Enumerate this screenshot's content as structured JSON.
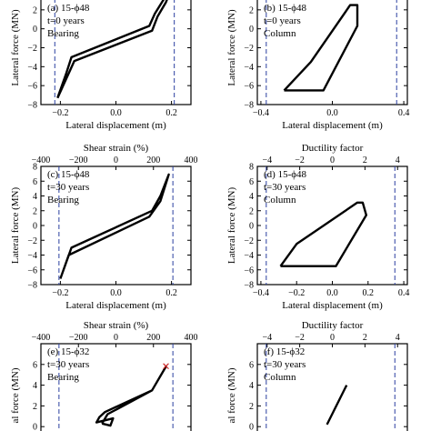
{
  "chart_data": [
    {
      "type": "line",
      "annotation": [
        "(a) 15-ϕ48",
        "t=0 years",
        "Bearing"
      ],
      "xlabel": "Lateral displacement (m)",
      "ylabel": "Lateral force (MN)",
      "xlim": [
        -0.27,
        0.27
      ],
      "ylim": [
        -8,
        4
      ],
      "xticks": [
        {
          "v": -0.2,
          "label": "−0.2"
        },
        {
          "v": 0,
          "label": "0.0"
        },
        {
          "v": 0.2,
          "label": "0.2"
        }
      ],
      "yticks": [
        {
          "v": -8,
          "label": "−8"
        },
        {
          "v": -6,
          "label": "−6"
        },
        {
          "v": -4,
          "label": "−4"
        },
        {
          "v": -2,
          "label": "−2"
        },
        {
          "v": 0,
          "label": "0"
        },
        {
          "v": 2,
          "label": "2"
        }
      ],
      "limit_lines": [
        -0.22,
        0.21
      ],
      "series": [
        {
          "x": [
            -0.21,
            -0.19,
            -0.17,
            -0.15,
            0.13,
            0.15,
            0.18,
            0.2,
            0.17,
            0.14,
            0.12,
            -0.16,
            -0.18,
            -0.21
          ],
          "y": [
            -7.3,
            -6.0,
            -4.7,
            -3.4,
            -0.2,
            1.3,
            2.8,
            4.3,
            3.0,
            1.6,
            0.3,
            -3.0,
            -4.8,
            -7.3
          ]
        }
      ]
    },
    {
      "type": "line",
      "annotation": [
        "(b) 15-ϕ48",
        "t=0 years",
        "Column"
      ],
      "xlabel": "Lateral displacement (m)",
      "ylabel": "Lateral force (MN)",
      "xlim": [
        -0.42,
        0.42
      ],
      "ylim": [
        -8,
        4
      ],
      "xticks": [
        {
          "v": -0.4,
          "label": "−0.4"
        },
        {
          "v": 0,
          "label": "0.0"
        },
        {
          "v": 0.4,
          "label": "0.4"
        }
      ],
      "yticks": [
        {
          "v": -8,
          "label": "−8"
        },
        {
          "v": -6,
          "label": "−6"
        },
        {
          "v": -4,
          "label": "−4"
        },
        {
          "v": -2,
          "label": "−2"
        },
        {
          "v": 0,
          "label": "0"
        },
        {
          "v": 2,
          "label": "2"
        }
      ],
      "limit_lines": [
        -0.37,
        0.36
      ],
      "series": [
        {
          "x": [
            -0.27,
            -0.05,
            0.14,
            0.14,
            0.1,
            -0.12,
            -0.27
          ],
          "y": [
            -6.5,
            -6.5,
            0.3,
            2.5,
            2.5,
            -3.5,
            -6.5
          ]
        }
      ]
    },
    {
      "type": "line",
      "annotation": [
        "(c) 15-ϕ48",
        "t=30 years",
        "Bearing"
      ],
      "xlabel": "Lateral displacement (m)",
      "ylabel": "Lateral force (MN)",
      "top_axis_label": "Shear strain (%)",
      "top_ticks": [
        {
          "v": -400,
          "label": "−400"
        },
        {
          "v": -200,
          "label": "−200"
        },
        {
          "v": 0,
          "label": "0"
        },
        {
          "v": 200,
          "label": "200"
        },
        {
          "v": 400,
          "label": "400"
        }
      ],
      "top_lim": [
        -400,
        400
      ],
      "xlim": [
        -0.27,
        0.27
      ],
      "ylim": [
        -8,
        8
      ],
      "xticks": [
        {
          "v": -0.2,
          "label": "−0.2"
        },
        {
          "v": 0,
          "label": "0.0"
        },
        {
          "v": 0.2,
          "label": "0.2"
        }
      ],
      "yticks": [
        {
          "v": -8,
          "label": "−8"
        },
        {
          "v": -6,
          "label": "−6"
        },
        {
          "v": -4,
          "label": "−4"
        },
        {
          "v": -2,
          "label": "−2"
        },
        {
          "v": 0,
          "label": "0"
        },
        {
          "v": 2,
          "label": "2"
        },
        {
          "v": 4,
          "label": "4"
        },
        {
          "v": 6,
          "label": "6"
        },
        {
          "v": 8,
          "label": "8"
        }
      ],
      "limit_lines": [
        -0.205,
        0.205
      ],
      "series": [
        {
          "x": [
            -0.2,
            -0.17,
            0.12,
            0.16,
            0.19,
            0.16,
            0.13,
            -0.16,
            -0.2
          ],
          "y": [
            -7.2,
            -4.0,
            1.2,
            3.3,
            6.9,
            4.0,
            2.0,
            -3.0,
            -7.2
          ]
        }
      ]
    },
    {
      "type": "line",
      "annotation": [
        "(d) 15-ϕ48",
        "t=30 years",
        "Column"
      ],
      "xlabel": "Lateral displacement (m)",
      "ylabel": "Lateral force (MN)",
      "top_axis_label": "Ductility factor",
      "top_ticks": [
        {
          "v": -4,
          "label": "−4"
        },
        {
          "v": -2,
          "label": "−2"
        },
        {
          "v": 0,
          "label": "0"
        },
        {
          "v": 2,
          "label": "2"
        },
        {
          "v": 4,
          "label": "4"
        }
      ],
      "top_lim": [
        -4.6,
        4.6
      ],
      "xlim": [
        -0.42,
        0.42
      ],
      "ylim": [
        -8,
        8
      ],
      "xticks": [
        {
          "v": -0.4,
          "label": "−0.4"
        },
        {
          "v": -0.2,
          "label": "−0.2"
        },
        {
          "v": 0,
          "label": "0.0"
        },
        {
          "v": 0.2,
          "label": "0.2"
        },
        {
          "v": 0.4,
          "label": "0.4"
        }
      ],
      "yticks": [
        {
          "v": -8,
          "label": "−8"
        },
        {
          "v": -6,
          "label": "−6"
        },
        {
          "v": -4,
          "label": "−4"
        },
        {
          "v": -2,
          "label": "−2"
        },
        {
          "v": 0,
          "label": "0"
        },
        {
          "v": 2,
          "label": "2"
        },
        {
          "v": 4,
          "label": "4"
        },
        {
          "v": 6,
          "label": "6"
        },
        {
          "v": 8,
          "label": "8"
        }
      ],
      "limit_lines": [
        -0.37,
        0.35
      ],
      "series": [
        {
          "x": [
            -0.29,
            0.02,
            0.19,
            0.17,
            0.14,
            -0.2,
            -0.29
          ],
          "y": [
            -5.5,
            -5.5,
            1.4,
            3.1,
            3.1,
            -2.5,
            -5.5
          ]
        }
      ]
    },
    {
      "type": "line",
      "annotation": [
        "(e) 15-ϕ32",
        "t=30 years",
        "Bearing"
      ],
      "xlabel": "",
      "ylabel": "al force (MN)",
      "top_axis_label": "Shear strain (%)",
      "top_ticks": [
        {
          "v": -400,
          "label": "−400"
        },
        {
          "v": -200,
          "label": "−200"
        },
        {
          "v": 0,
          "label": "0"
        },
        {
          "v": 200,
          "label": "200"
        },
        {
          "v": 400,
          "label": "400"
        }
      ],
      "top_lim": [
        -400,
        400
      ],
      "xlim": [
        -0.27,
        0.27
      ],
      "ylim": [
        -2,
        8
      ],
      "yticks": [
        {
          "v": 0,
          "label": "0"
        },
        {
          "v": 2,
          "label": "2"
        },
        {
          "v": 4,
          "label": "4"
        },
        {
          "v": 6,
          "label": "6"
        }
      ],
      "limit_lines": [
        -0.205,
        0.205
      ],
      "marker": {
        "x": 0.18,
        "y": 5.8,
        "symbol": "×",
        "color": "#cc2222"
      },
      "series": [
        {
          "x": [
            -0.05,
            -0.03,
            0.13,
            0.18,
            0.13,
            -0.04,
            -0.06,
            -0.07,
            -0.01,
            -0.02,
            -0.05
          ],
          "y": [
            0.3,
            1.2,
            3.5,
            5.8,
            3.5,
            1.4,
            0.9,
            0.4,
            0.8,
            0.1,
            0.3
          ]
        }
      ]
    },
    {
      "type": "line",
      "annotation": [
        "(f) 15-ϕ32",
        "t=30 years",
        "Column"
      ],
      "xlabel": "",
      "ylabel": "al force (MN)",
      "top_axis_label": "Ductility factor",
      "top_ticks": [
        {
          "v": -4,
          "label": "−4"
        },
        {
          "v": -2,
          "label": "−2"
        },
        {
          "v": 0,
          "label": "0"
        },
        {
          "v": 2,
          "label": "2"
        },
        {
          "v": 4,
          "label": "4"
        }
      ],
      "top_lim": [
        -4.6,
        4.6
      ],
      "xlim": [
        -0.42,
        0.42
      ],
      "ylim": [
        -2,
        8
      ],
      "yticks": [
        {
          "v": 0,
          "label": "0"
        },
        {
          "v": 2,
          "label": "2"
        },
        {
          "v": 4,
          "label": "4"
        },
        {
          "v": 6,
          "label": "6"
        }
      ],
      "limit_lines": [
        -0.37,
        0.35
      ],
      "series": [
        {
          "x": [
            -0.03,
            0.08
          ],
          "y": [
            0.2,
            4.0
          ]
        }
      ]
    }
  ]
}
